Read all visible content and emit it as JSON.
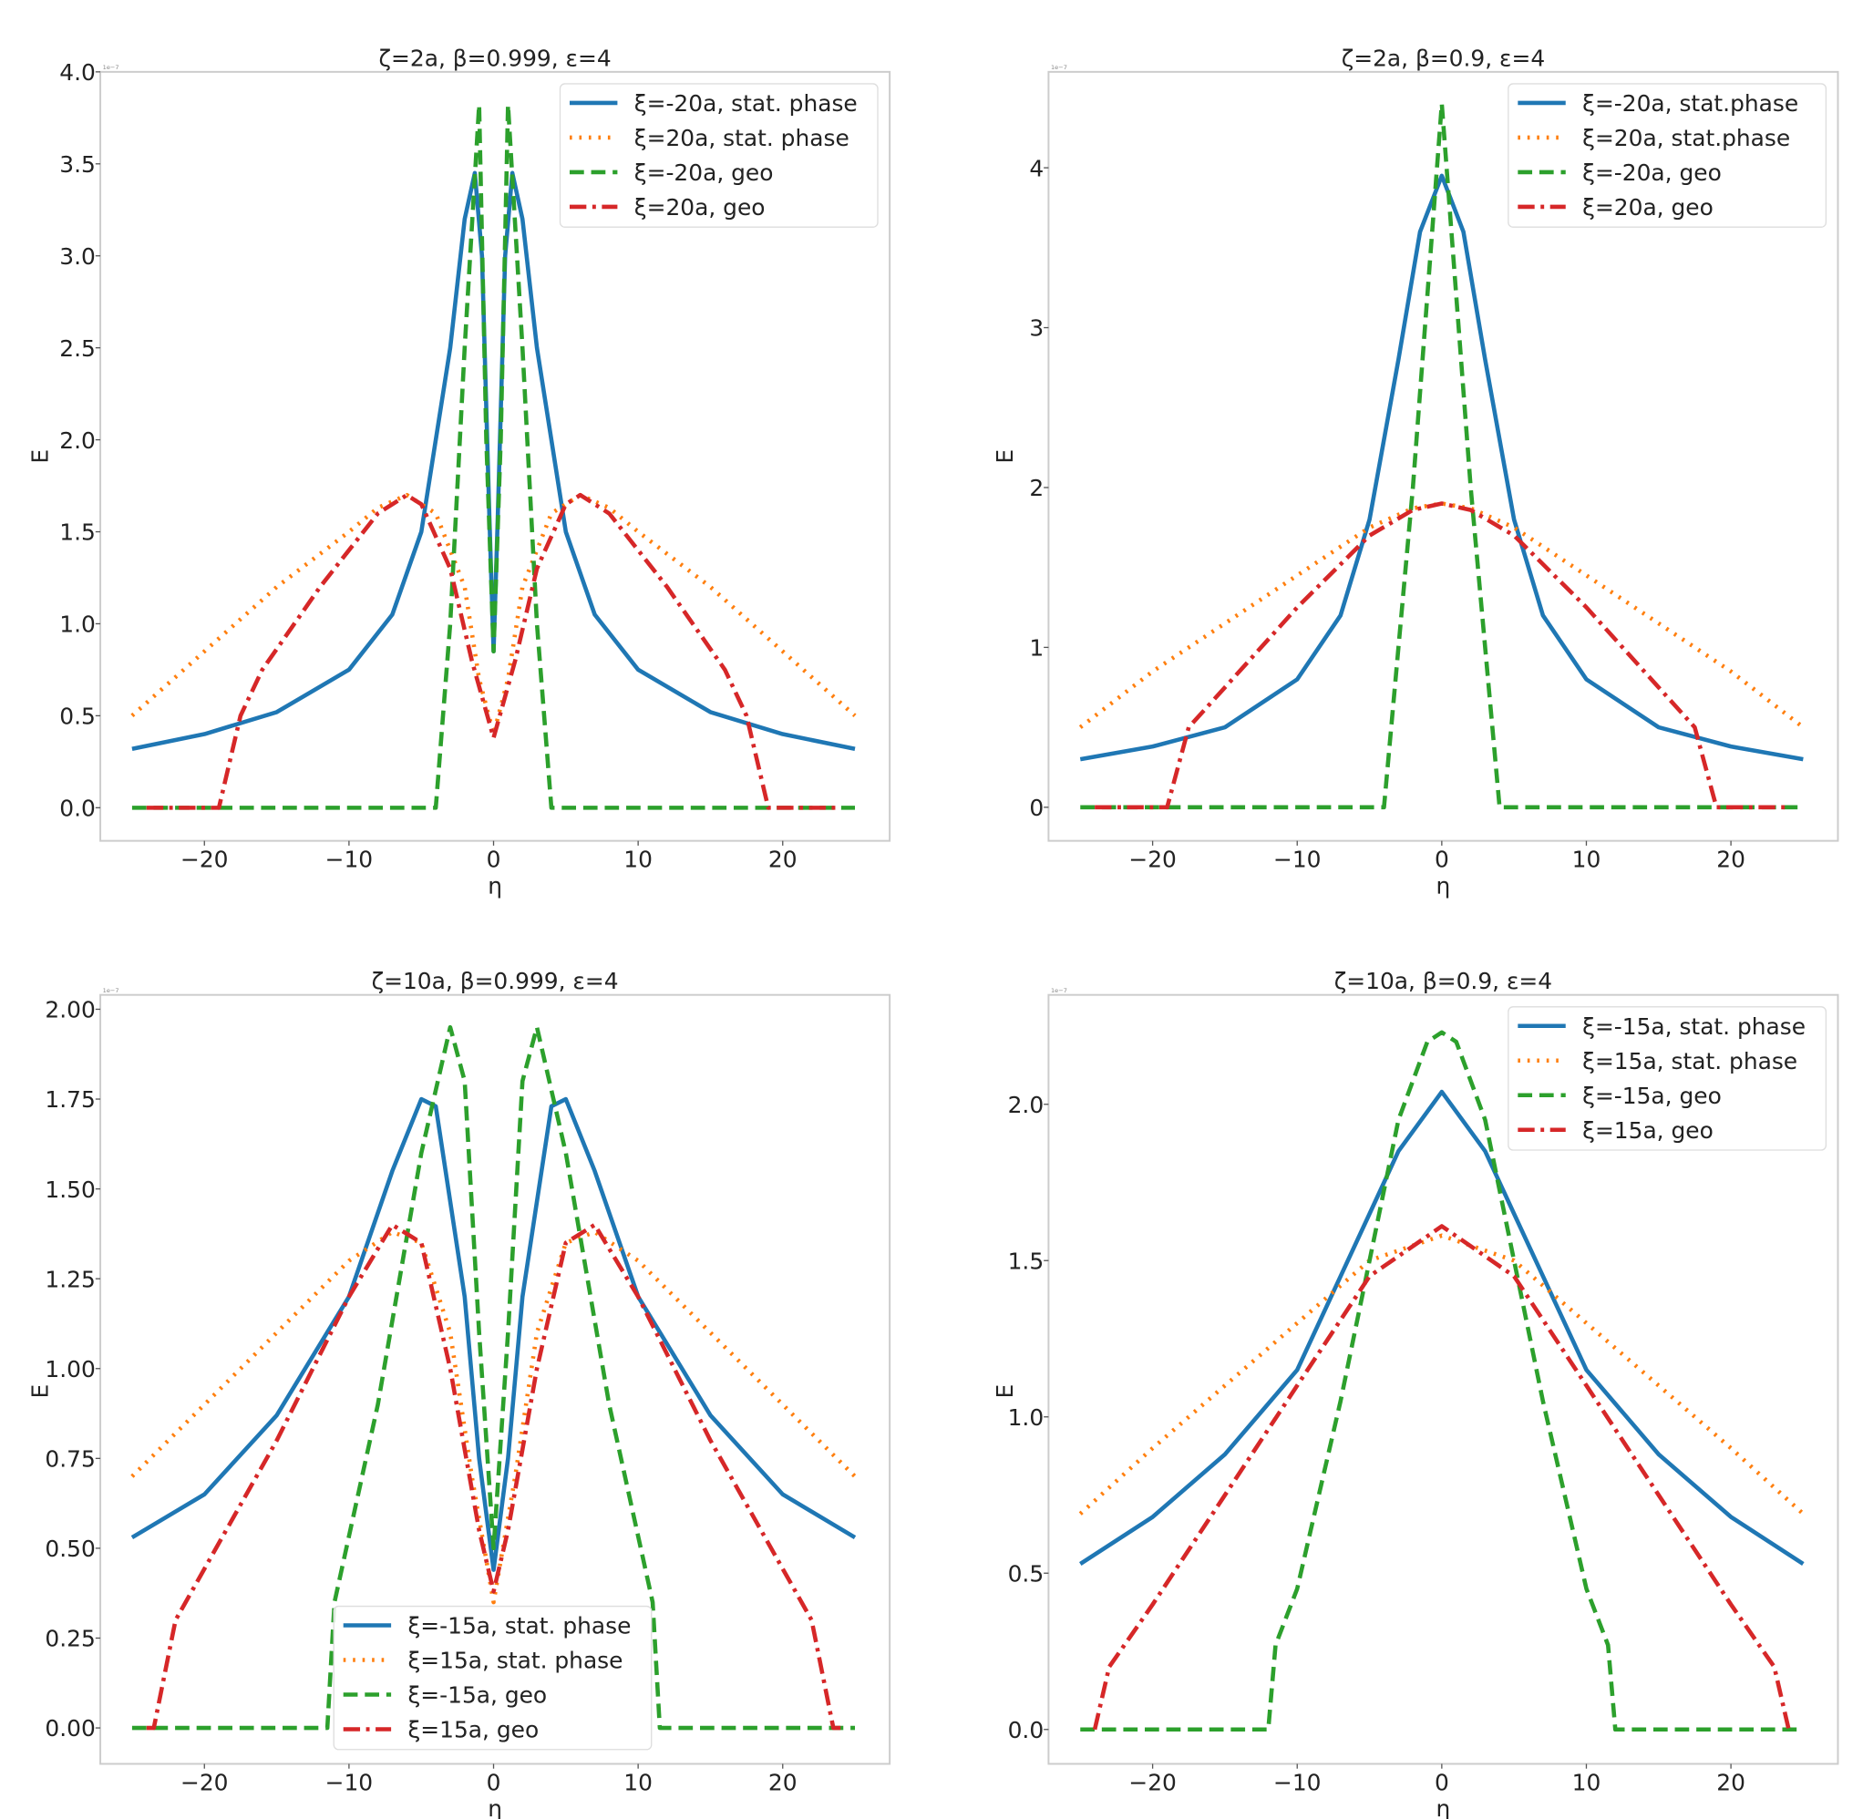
{
  "chart_data": [
    {
      "type": "line",
      "title": "ζ=2a, β=0.999, ε=4",
      "xlabel": "η",
      "ylabel": "E",
      "y_multiplier": "1e−7",
      "xlim": [
        -27.2,
        27.4
      ],
      "ylim": [
        -0.18,
        4.0
      ],
      "xticks": [
        -20,
        -10,
        0,
        10,
        20
      ],
      "xtick_labels": [
        "−20",
        "−10",
        "0",
        "10",
        "20"
      ],
      "yticks": [
        0,
        0.5,
        1,
        1.5,
        2,
        2.5,
        3,
        3.5,
        4
      ],
      "ytick_labels": [
        "0.0",
        "0.5",
        "1.0",
        "1.5",
        "2.0",
        "2.5",
        "3.0",
        "3.5",
        "4.0"
      ],
      "grid": false,
      "legend_placement": "upper right",
      "series": [
        {
          "name": "ξ=-20a, stat. phase",
          "color": "#1f77b4",
          "style": "solid",
          "x": [
            -25,
            -20,
            -15,
            -10,
            -7,
            -5,
            -3,
            -2,
            -1.3,
            -0.8,
            -0.3,
            0,
            0.3,
            0.8,
            1.3,
            2,
            3,
            5,
            7,
            10,
            15,
            20,
            25
          ],
          "y": [
            0.32,
            0.4,
            0.52,
            0.75,
            1.05,
            1.5,
            2.5,
            3.2,
            3.45,
            3.0,
            1.6,
            0.85,
            1.6,
            3.0,
            3.45,
            3.2,
            2.5,
            1.5,
            1.05,
            0.75,
            0.52,
            0.4,
            0.32
          ]
        },
        {
          "name": "ξ=20a, stat. phase",
          "color": "#ff7f0e",
          "style": "dotted",
          "x": [
            -25,
            -20,
            -15,
            -10,
            -8,
            -6,
            -4,
            -2,
            -1,
            0,
            1,
            2,
            4,
            6,
            8,
            10,
            15,
            20,
            25
          ],
          "y": [
            0.5,
            0.85,
            1.2,
            1.5,
            1.63,
            1.7,
            1.6,
            1.2,
            0.7,
            0.4,
            0.7,
            1.2,
            1.6,
            1.7,
            1.63,
            1.5,
            1.2,
            0.85,
            0.5
          ]
        },
        {
          "name": "ξ=-20a, geo",
          "color": "#2ca02c",
          "style": "dashed",
          "x": [
            -25,
            -4,
            -3,
            -2,
            -1,
            -0.5,
            0,
            0.5,
            1,
            2,
            3,
            4,
            25
          ],
          "y": [
            0,
            0,
            1.0,
            2.5,
            3.82,
            2.0,
            0.85,
            2.0,
            3.82,
            2.5,
            1.0,
            0,
            0
          ]
        },
        {
          "name": "ξ=20a, geo",
          "color": "#d62728",
          "style": "dashdot",
          "x": [
            -24,
            -19,
            -17.5,
            -16,
            -12,
            -8,
            -6,
            -5,
            -3,
            -1.5,
            0,
            1.5,
            3,
            5,
            6,
            8,
            12,
            16,
            17.5,
            19,
            24
          ],
          "y": [
            0,
            0,
            0.5,
            0.75,
            1.2,
            1.6,
            1.7,
            1.65,
            1.3,
            0.8,
            0.38,
            0.8,
            1.3,
            1.65,
            1.7,
            1.6,
            1.2,
            0.75,
            0.5,
            0,
            0
          ]
        }
      ]
    },
    {
      "type": "line",
      "title": "ζ=2a, β=0.9, ε=4",
      "xlabel": "η",
      "ylabel": "E",
      "y_multiplier": "1e−7",
      "xlim": [
        -27.2,
        27.4
      ],
      "ylim": [
        -0.21,
        4.6
      ],
      "xticks": [
        -20,
        -10,
        0,
        10,
        20
      ],
      "xtick_labels": [
        "−20",
        "−10",
        "0",
        "10",
        "20"
      ],
      "yticks": [
        0,
        1,
        2,
        3,
        4
      ],
      "ytick_labels": [
        "0",
        "1",
        "2",
        "3",
        "4"
      ],
      "grid": false,
      "legend_placement": "upper right",
      "series": [
        {
          "name": "ξ=-20a, stat.phase",
          "color": "#1f77b4",
          "style": "solid",
          "x": [
            -25,
            -20,
            -15,
            -10,
            -7,
            -5,
            -3,
            -1.5,
            0,
            1.5,
            3,
            5,
            7,
            10,
            15,
            20,
            25
          ],
          "y": [
            0.3,
            0.38,
            0.5,
            0.8,
            1.2,
            1.8,
            2.8,
            3.6,
            3.95,
            3.6,
            2.8,
            1.8,
            1.2,
            0.8,
            0.5,
            0.38,
            0.3
          ]
        },
        {
          "name": "ξ=20a, stat.phase",
          "color": "#ff7f0e",
          "style": "dotted",
          "x": [
            -25,
            -20,
            -15,
            -10,
            -5,
            -2,
            0,
            2,
            5,
            10,
            15,
            20,
            25
          ],
          "y": [
            0.5,
            0.85,
            1.15,
            1.45,
            1.75,
            1.87,
            1.9,
            1.87,
            1.75,
            1.45,
            1.15,
            0.85,
            0.5
          ]
        },
        {
          "name": "ξ=-20a, geo",
          "color": "#2ca02c",
          "style": "dashed",
          "x": [
            -25,
            -4,
            -2,
            0,
            2,
            4,
            25
          ],
          "y": [
            0,
            0,
            2.0,
            4.4,
            2.0,
            0,
            0
          ]
        },
        {
          "name": "ξ=20a, geo",
          "color": "#d62728",
          "style": "dashdot",
          "x": [
            -24,
            -19,
            -17.5,
            -15,
            -10,
            -5,
            -2,
            0,
            2,
            5,
            10,
            15,
            17.5,
            19,
            24
          ],
          "y": [
            0,
            0,
            0.5,
            0.75,
            1.25,
            1.7,
            1.86,
            1.9,
            1.86,
            1.7,
            1.25,
            0.75,
            0.5,
            0,
            0
          ]
        }
      ]
    },
    {
      "type": "line",
      "title": "ζ=10a, β=0.999, ε=4",
      "xlabel": "η",
      "ylabel": "E",
      "y_multiplier": "1e−7",
      "xlim": [
        -27.2,
        27.4
      ],
      "ylim": [
        -0.1,
        2.04
      ],
      "xticks": [
        -20,
        -10,
        0,
        10,
        20
      ],
      "xtick_labels": [
        "−20",
        "−10",
        "0",
        "10",
        "20"
      ],
      "yticks": [
        0,
        0.25,
        0.5,
        0.75,
        1,
        1.25,
        1.5,
        1.75,
        2
      ],
      "ytick_labels": [
        "0.00",
        "0.25",
        "0.50",
        "0.75",
        "1.00",
        "1.25",
        "1.50",
        "1.75",
        "2.00"
      ],
      "grid": false,
      "legend_placement": "lower center",
      "series": [
        {
          "name": "ξ=-15a, stat. phase",
          "color": "#1f77b4",
          "style": "solid",
          "x": [
            -25,
            -20,
            -15,
            -10,
            -7,
            -5,
            -4,
            -2,
            -1,
            0,
            1,
            2,
            4,
            5,
            7,
            10,
            15,
            20,
            25
          ],
          "y": [
            0.53,
            0.65,
            0.87,
            1.2,
            1.55,
            1.75,
            1.73,
            1.2,
            0.75,
            0.44,
            0.75,
            1.2,
            1.73,
            1.75,
            1.55,
            1.2,
            0.87,
            0.65,
            0.53
          ]
        },
        {
          "name": "ξ=15a, stat. phase",
          "color": "#ff7f0e",
          "style": "dotted",
          "x": [
            -25,
            -20,
            -15,
            -10,
            -7,
            -5,
            -3,
            -1.5,
            0,
            1.5,
            3,
            5,
            7,
            10,
            15,
            20,
            25
          ],
          "y": [
            0.7,
            0.9,
            1.1,
            1.3,
            1.38,
            1.35,
            1.1,
            0.7,
            0.35,
            0.7,
            1.1,
            1.35,
            1.38,
            1.3,
            1.1,
            0.9,
            0.7
          ]
        },
        {
          "name": "ξ=-15a, geo",
          "color": "#2ca02c",
          "style": "dashed",
          "x": [
            -25,
            -11.5,
            -11,
            -8,
            -5,
            -3,
            -2,
            -1,
            0,
            1,
            2,
            3,
            5,
            8,
            11,
            11.5,
            25
          ],
          "y": [
            0,
            0,
            0.35,
            0.9,
            1.6,
            1.95,
            1.8,
            1.1,
            0.5,
            1.1,
            1.8,
            1.95,
            1.6,
            0.9,
            0.35,
            0,
            0
          ]
        },
        {
          "name": "ξ=15a, geo",
          "color": "#d62728",
          "style": "dashdot",
          "x": [
            -24,
            -23.5,
            -22,
            -15,
            -10,
            -7,
            -5,
            -3,
            -1,
            0,
            1,
            3,
            5,
            7,
            10,
            15,
            22,
            23.5,
            24
          ],
          "y": [
            0,
            0,
            0.3,
            0.8,
            1.2,
            1.4,
            1.35,
            1.0,
            0.55,
            0.38,
            0.55,
            1.0,
            1.35,
            1.4,
            1.2,
            0.8,
            0.3,
            0,
            0
          ]
        }
      ]
    },
    {
      "type": "line",
      "title": "ζ=10a, β=0.9, ε=4",
      "xlabel": "η",
      "ylabel": "E",
      "y_multiplier": "1e−7",
      "xlim": [
        -27.2,
        27.4
      ],
      "ylim": [
        -0.11,
        2.35
      ],
      "xticks": [
        -20,
        -10,
        0,
        10,
        20
      ],
      "xtick_labels": [
        "−20",
        "−10",
        "0",
        "10",
        "20"
      ],
      "yticks": [
        0,
        0.5,
        1,
        1.5,
        2
      ],
      "ytick_labels": [
        "0.0",
        "0.5",
        "1.0",
        "1.5",
        "2.0"
      ],
      "grid": false,
      "legend_placement": "upper right",
      "series": [
        {
          "name": "ξ=-15a, stat. phase",
          "color": "#1f77b4",
          "style": "solid",
          "x": [
            -25,
            -20,
            -15,
            -10,
            -5,
            -3,
            0,
            3,
            5,
            10,
            15,
            20,
            25
          ],
          "y": [
            0.53,
            0.68,
            0.88,
            1.15,
            1.65,
            1.85,
            2.04,
            1.85,
            1.65,
            1.15,
            0.88,
            0.68,
            0.53
          ]
        },
        {
          "name": "ξ=15a, stat. phase",
          "color": "#ff7f0e",
          "style": "dotted",
          "x": [
            -25,
            -20,
            -15,
            -10,
            -5,
            0,
            5,
            10,
            15,
            20,
            25
          ],
          "y": [
            0.69,
            0.9,
            1.1,
            1.3,
            1.5,
            1.58,
            1.5,
            1.3,
            1.1,
            0.9,
            0.69
          ]
        },
        {
          "name": "ξ=-15a, geo",
          "color": "#2ca02c",
          "style": "dashed",
          "x": [
            -25,
            -12,
            -11.5,
            -10,
            -7,
            -5,
            -3,
            -1,
            0,
            1,
            3,
            5,
            7,
            10,
            11.5,
            12,
            25
          ],
          "y": [
            0,
            0,
            0.27,
            0.45,
            1.05,
            1.5,
            1.95,
            2.2,
            2.23,
            2.2,
            1.95,
            1.5,
            1.05,
            0.45,
            0.27,
            0,
            0
          ]
        },
        {
          "name": "ξ=15a, geo",
          "color": "#d62728",
          "style": "dashdot",
          "x": [
            -24,
            -23,
            -20,
            -15,
            -10,
            -5,
            0,
            5,
            10,
            15,
            20,
            23,
            24
          ],
          "y": [
            0,
            0.2,
            0.4,
            0.75,
            1.1,
            1.45,
            1.61,
            1.45,
            1.1,
            0.75,
            0.4,
            0.2,
            0
          ]
        }
      ]
    }
  ]
}
